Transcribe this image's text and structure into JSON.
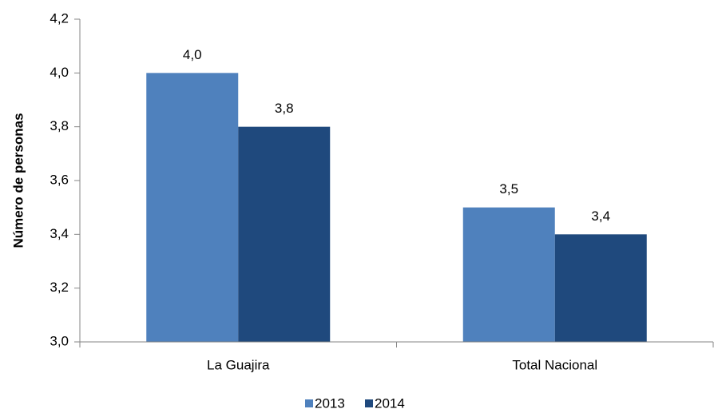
{
  "chart_data": {
    "type": "bar",
    "y_label": "Número de personas",
    "categories": [
      "La Guajira",
      "Total Nacional"
    ],
    "series": [
      {
        "name": "2013",
        "color": "#4f81bd",
        "values": [
          4.0,
          3.5
        ],
        "value_labels": [
          "4,0",
          "3,5"
        ]
      },
      {
        "name": "2014",
        "color": "#1f497d",
        "values": [
          3.8,
          3.4
        ],
        "value_labels": [
          "3,8",
          "3,4"
        ]
      }
    ],
    "ylim": [
      3.0,
      4.2
    ],
    "yticks": [
      {
        "value": 3.0,
        "label": "3,0"
      },
      {
        "value": 3.2,
        "label": "3,2"
      },
      {
        "value": 3.4,
        "label": "3,4"
      },
      {
        "value": 3.6,
        "label": "3,6"
      },
      {
        "value": 3.8,
        "label": "3,8"
      },
      {
        "value": 4.0,
        "label": "4,0"
      },
      {
        "value": 4.2,
        "label": "4,2"
      }
    ],
    "grid": false,
    "legend": "bottom"
  }
}
